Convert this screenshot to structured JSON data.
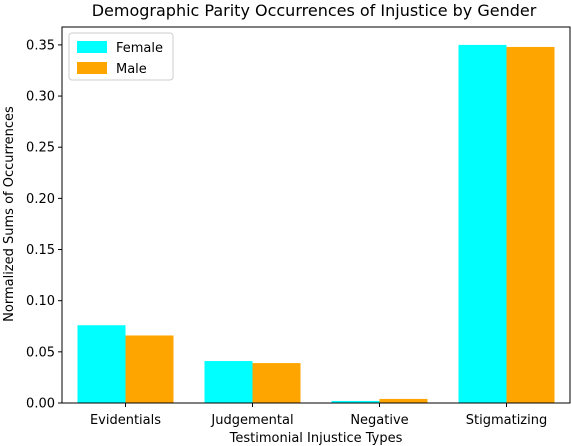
{
  "chart_data": {
    "type": "bar",
    "title": "Demographic Parity Occurrences of Injustice by Gender",
    "xlabel": "Testimonial Injustice Types",
    "ylabel": "Normalized Sums of Occurrences",
    "categories": [
      "Evidentials",
      "Judgemental",
      "Negative",
      "Stigmatizing"
    ],
    "series": [
      {
        "name": "Female",
        "color": "#00ffff",
        "values": [
          0.076,
          0.041,
          0.002,
          0.35
        ]
      },
      {
        "name": "Male",
        "color": "#ffa500",
        "values": [
          0.066,
          0.039,
          0.004,
          0.348
        ]
      }
    ],
    "ylim": [
      0,
      0.3675
    ],
    "yticks": [
      "0.00",
      "0.05",
      "0.10",
      "0.15",
      "0.20",
      "0.25",
      "0.30",
      "0.35"
    ],
    "legend_position": "upper-left",
    "grid": false
  }
}
